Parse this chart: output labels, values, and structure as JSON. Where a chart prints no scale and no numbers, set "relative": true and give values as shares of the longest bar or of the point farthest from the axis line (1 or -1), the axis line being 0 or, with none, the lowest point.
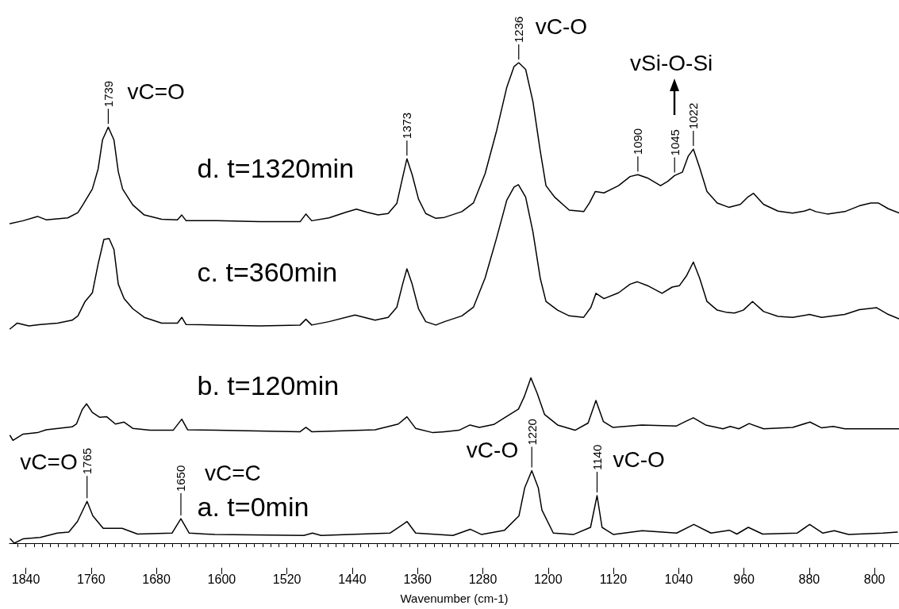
{
  "chart_data": {
    "type": "line",
    "relative": true,
    "xlabel": "Wavenumber (cm-1)",
    "xlim": [
      1860,
      770
    ],
    "xticks": [
      {
        "value": 1850,
        "label": null
      },
      1840,
      {
        "value": 1830,
        "label": null
      },
      {
        "value": 1820,
        "label": null
      },
      {
        "value": 1810,
        "label": null
      },
      {
        "value": 1800,
        "label": null
      },
      {
        "value": 1790,
        "label": null
      },
      {
        "value": 1780,
        "label": null
      },
      {
        "value": 1770,
        "label": null
      },
      1760,
      {
        "value": 1750,
        "label": null
      },
      {
        "value": 1740,
        "label": null
      },
      {
        "value": 1730,
        "label": null
      },
      {
        "value": 1720,
        "label": null
      },
      {
        "value": 1710,
        "label": null
      },
      {
        "value": 1700,
        "label": null
      },
      {
        "value": 1690,
        "label": null
      },
      1680,
      {
        "value": 1670,
        "label": null
      },
      {
        "value": 1660,
        "label": null
      },
      {
        "value": 1650,
        "label": null
      },
      {
        "value": 1640,
        "label": null
      },
      {
        "value": 1630,
        "label": null
      },
      {
        "value": 1620,
        "label": null
      },
      {
        "value": 1610,
        "label": null
      },
      1600,
      {
        "value": 1590,
        "label": null
      },
      {
        "value": 1580,
        "label": null
      },
      {
        "value": 1570,
        "label": null
      },
      {
        "value": 1560,
        "label": null
      },
      {
        "value": 1550,
        "label": null
      },
      {
        "value": 1540,
        "label": null
      },
      {
        "value": 1530,
        "label": null
      },
      1520,
      {
        "value": 1510,
        "label": null
      },
      {
        "value": 1500,
        "label": null
      },
      {
        "value": 1490,
        "label": null
      },
      {
        "value": 1480,
        "label": null
      },
      {
        "value": 1470,
        "label": null
      },
      {
        "value": 1460,
        "label": null
      },
      {
        "value": 1450,
        "label": null
      },
      1440,
      {
        "value": 1430,
        "label": null
      },
      {
        "value": 1420,
        "label": null
      },
      {
        "value": 1410,
        "label": null
      },
      {
        "value": 1400,
        "label": null
      },
      {
        "value": 1390,
        "label": null
      },
      {
        "value": 1380,
        "label": null
      },
      {
        "value": 1370,
        "label": null
      },
      1360,
      {
        "value": 1350,
        "label": null
      },
      {
        "value": 1340,
        "label": null
      },
      {
        "value": 1330,
        "label": null
      },
      {
        "value": 1320,
        "label": null
      },
      {
        "value": 1310,
        "label": null
      },
      {
        "value": 1300,
        "label": null
      },
      {
        "value": 1290,
        "label": null
      },
      1280,
      {
        "value": 1270,
        "label": null
      },
      {
        "value": 1260,
        "label": null
      },
      {
        "value": 1250,
        "label": null
      },
      {
        "value": 1240,
        "label": null
      },
      {
        "value": 1230,
        "label": null
      },
      {
        "value": 1220,
        "label": null
      },
      {
        "value": 1210,
        "label": null
      },
      1200,
      {
        "value": 1190,
        "label": null
      },
      {
        "value": 1180,
        "label": null
      },
      {
        "value": 1170,
        "label": null
      },
      {
        "value": 1160,
        "label": null
      },
      {
        "value": 1150,
        "label": null
      },
      {
        "value": 1140,
        "label": null
      },
      {
        "value": 1130,
        "label": null
      },
      1120,
      {
        "value": 1110,
        "label": null
      },
      {
        "value": 1100,
        "label": null
      },
      {
        "value": 1090,
        "label": null
      },
      {
        "value": 1080,
        "label": null
      },
      {
        "value": 1070,
        "label": null
      },
      {
        "value": 1060,
        "label": null
      },
      {
        "value": 1050,
        "label": null
      },
      1040,
      {
        "value": 1030,
        "label": null
      },
      {
        "value": 1020,
        "label": null
      },
      {
        "value": 1010,
        "label": null
      },
      {
        "value": 1000,
        "label": null
      },
      {
        "value": 990,
        "label": null
      },
      {
        "value": 980,
        "label": null
      },
      {
        "value": 970,
        "label": null
      },
      960,
      {
        "value": 950,
        "label": null
      },
      {
        "value": 940,
        "label": null
      },
      {
        "value": 930,
        "label": null
      },
      {
        "value": 920,
        "label": null
      },
      {
        "value": 910,
        "label": null
      },
      {
        "value": 900,
        "label": null
      },
      {
        "value": 890,
        "label": null
      },
      880,
      {
        "value": 870,
        "label": null
      },
      {
        "value": 860,
        "label": null
      },
      {
        "value": 850,
        "label": null
      },
      {
        "value": 840,
        "label": null
      },
      {
        "value": 830,
        "label": null
      },
      {
        "value": 820,
        "label": null
      },
      {
        "value": 810,
        "label": null
      },
      800,
      {
        "value": 790,
        "label": null
      },
      {
        "value": 780,
        "label": null
      }
    ],
    "grid": false,
    "marker": "none",
    "line_style": "solid",
    "series": [
      {
        "name": "a. t=0min",
        "color": "#000000",
        "x": [
          1859.1,
          1854.1,
          1843.6,
          1822.5,
          1801.4,
          1787.4,
          1776.8,
          1765,
          1757.9,
          1745.2,
          1722.0,
          1703.1,
          1660.9,
          1650,
          1639.8,
          1608.2,
          1499.3,
          1488.7,
          1478.2,
          1393.9,
          1372.8,
          1362.3,
          1316.6,
          1295.5,
          1281.5,
          1253.4,
          1235.7,
          1228.7,
          1220,
          1212,
          1207.6,
          1193.6,
          1169.0,
          1148.0,
          1140,
          1133.9,
          1119.8,
          1084.7,
          1042.5,
          1021.4,
          1000.4,
          977.9,
          968.7,
          954.7,
          937.1,
          894.9,
          879.5,
          863.3,
          849.3,
          831.7,
          789.6,
          772.0
        ],
        "values": [
          0.009,
          0.0,
          0.009,
          0.012,
          0.021,
          0.023,
          0.045,
          0.087,
          0.057,
          0.031,
          0.031,
          0.019,
          0.021,
          0.051,
          0.021,
          0.018,
          0.016,
          0.021,
          0.016,
          0.021,
          0.045,
          0.021,
          0.016,
          0.029,
          0.018,
          0.027,
          0.057,
          0.115,
          0.151,
          0.115,
          0.069,
          0.021,
          0.018,
          0.033,
          0.099,
          0.033,
          0.018,
          0.026,
          0.021,
          0.039,
          0.021,
          0.027,
          0.019,
          0.033,
          0.019,
          0.021,
          0.039,
          0.021,
          0.026,
          0.018,
          0.021,
          0.023
        ]
      },
      {
        "name": "b. t=120min",
        "color": "#000000",
        "x": [
          1859.3,
          1855.8,
          1843.4,
          1825.7,
          1815.1,
          1783.3,
          1778.0,
          1770.9,
          1765.6,
          1758.5,
          1749.7,
          1740.8,
          1730.2,
          1719.6,
          1709.0,
          1687.8,
          1659.5,
          1648.9,
          1641.8,
          1606.4,
          1503.9,
          1496.8,
          1489.7,
          1412.0,
          1383.6,
          1373.0,
          1362.4,
          1341.2,
          1327.0,
          1309.2,
          1295.7,
          1284.3,
          1266.6,
          1252.3,
          1236.3,
          1229.2,
          1221.1,
          1213.2,
          1204.4,
          1188.4,
          1167.0,
          1151.0,
          1141.4,
          1132.2,
          1120.8,
          1085.3,
          1042.6,
          1031.9,
          1022.0,
          1007.0,
          985.7,
          976.8,
          966.2,
          953.7,
          935.9,
          900.4,
          879.1,
          864.8,
          850.6,
          836.4,
          770
        ],
        "values": [
          0.224,
          0.214,
          0.227,
          0.23,
          0.236,
          0.242,
          0.248,
          0.278,
          0.29,
          0.272,
          0.262,
          0.263,
          0.248,
          0.252,
          0.239,
          0.235,
          0.235,
          0.258,
          0.236,
          0.235,
          0.232,
          0.241,
          0.232,
          0.236,
          0.248,
          0.263,
          0.239,
          0.23,
          0.232,
          0.235,
          0.246,
          0.241,
          0.247,
          0.262,
          0.279,
          0.305,
          0.344,
          0.311,
          0.268,
          0.246,
          0.235,
          0.25,
          0.297,
          0.253,
          0.241,
          0.246,
          0.244,
          0.253,
          0.261,
          0.246,
          0.238,
          0.243,
          0.238,
          0.249,
          0.238,
          0.241,
          0.252,
          0.24,
          0.243,
          0.238,
          0.238
        ]
      },
      {
        "name": "c. t=360min",
        "color": "#000000",
        "x": [
          1859.3,
          1850.5,
          1836.3,
          1822.2,
          1801.0,
          1783.3,
          1776.2,
          1767.4,
          1758.5,
          1751.4,
          1744.4,
          1738.0,
          1732.0,
          1726.7,
          1719.6,
          1709.0,
          1694.9,
          1673.6,
          1654.2,
          1648.9,
          1643.6,
          1606.4,
          1553.4,
          1503.9,
          1496.8,
          1489.7,
          1468.5,
          1436.6,
          1412.0,
          1396.0,
          1385.4,
          1378.3,
          1373.0,
          1366.6,
          1358.8,
          1350.0,
          1337.6,
          1327.0,
          1305.7,
          1291.5,
          1277.2,
          1263.0,
          1250.6,
          1241.7,
          1236.4,
          1227.5,
          1218.6,
          1209.7,
          1202.6,
          1188.4,
          1174.1,
          1156.4,
          1147.5,
          1141.4,
          1131.5,
          1113.7,
          1099.5,
          1090.6,
          1078.2,
          1060.4,
          1047.9,
          1039.0,
          1030.2,
          1022.0,
          1014.2,
          1005.3,
          992.8,
          980.4,
          971.5,
          960.8,
          949.5,
          935.9,
          918.2,
          900.4,
          879.8,
          864.8,
          836.4,
          818.6,
          797.3,
          783.1,
          770
        ],
        "values": [
          0.446,
          0.458,
          0.452,
          0.455,
          0.458,
          0.464,
          0.473,
          0.503,
          0.521,
          0.581,
          0.632,
          0.634,
          0.611,
          0.539,
          0.509,
          0.488,
          0.47,
          0.458,
          0.458,
          0.47,
          0.455,
          0.454,
          0.452,
          0.454,
          0.466,
          0.454,
          0.461,
          0.475,
          0.464,
          0.47,
          0.491,
          0.539,
          0.571,
          0.539,
          0.488,
          0.461,
          0.454,
          0.461,
          0.473,
          0.491,
          0.552,
          0.636,
          0.714,
          0.741,
          0.746,
          0.72,
          0.648,
          0.552,
          0.503,
          0.485,
          0.473,
          0.47,
          0.491,
          0.52,
          0.509,
          0.521,
          0.539,
          0.544,
          0.536,
          0.52,
          0.533,
          0.536,
          0.557,
          0.585,
          0.551,
          0.503,
          0.485,
          0.48,
          0.479,
          0.485,
          0.503,
          0.482,
          0.472,
          0.47,
          0.476,
          0.47,
          0.476,
          0.486,
          0.49,
          0.476,
          0.467
        ]
      },
      {
        "name": "d. t=1320min",
        "color": "#000000",
        "x": [
          1859.3,
          1843.4,
          1825.7,
          1815.1,
          1788.6,
          1776.2,
          1769.1,
          1758.5,
          1751.4,
          1746.1,
          1739,
          1732.0,
          1726.7,
          1721.4,
          1709.0,
          1694.9,
          1673.6,
          1654.2,
          1648.9,
          1643.6,
          1606.4,
          1553.4,
          1503.9,
          1496.8,
          1489.7,
          1468.5,
          1447.3,
          1434.9,
          1422.5,
          1408.4,
          1396.0,
          1385.4,
          1378.3,
          1373,
          1366.6,
          1358.8,
          1350.0,
          1337.6,
          1327.0,
          1305.7,
          1291.5,
          1277.2,
          1263.0,
          1250.6,
          1241.7,
          1236,
          1227.5,
          1218.6,
          1209.7,
          1202.6,
          1191.9,
          1174.1,
          1156.4,
          1149.3,
          1142.1,
          1131.5,
          1113.7,
          1099.5,
          1090,
          1078.2,
          1062.2,
          1053.3,
          1045,
          1035.5,
          1028.4,
          1022,
          1014.2,
          1005.3,
          992.8,
          978.6,
          964.4,
          955.5,
          948.4,
          935.9,
          918.2,
          900.4,
          886.2,
          879.1,
          872.0,
          857.8,
          836.4,
          818.6,
          804.4,
          795.5,
          783.1,
          770
        ],
        "values": [
          0.665,
          0.671,
          0.68,
          0.673,
          0.677,
          0.688,
          0.707,
          0.737,
          0.779,
          0.839,
          0.866,
          0.839,
          0.773,
          0.737,
          0.704,
          0.683,
          0.674,
          0.673,
          0.683,
          0.671,
          0.671,
          0.669,
          0.669,
          0.685,
          0.671,
          0.677,
          0.689,
          0.695,
          0.689,
          0.683,
          0.686,
          0.707,
          0.761,
          0.8,
          0.767,
          0.716,
          0.686,
          0.676,
          0.678,
          0.69,
          0.708,
          0.769,
          0.859,
          0.949,
          0.992,
          1,
          0.986,
          0.919,
          0.817,
          0.744,
          0.72,
          0.693,
          0.69,
          0.708,
          0.732,
          0.729,
          0.744,
          0.763,
          0.767,
          0.76,
          0.744,
          0.753,
          0.765,
          0.772,
          0.805,
          0.82,
          0.781,
          0.732,
          0.708,
          0.699,
          0.705,
          0.72,
          0.728,
          0.705,
          0.691,
          0.687,
          0.691,
          0.695,
          0.69,
          0.685,
          0.69,
          0.702,
          0.708,
          0.708,
          0.696,
          0.687
        ]
      }
    ],
    "annotations": [
      {
        "text": "1739",
        "x": 1739,
        "y": 0.866
      },
      "vC=O",
      {
        "text": "1373",
        "x": 1373,
        "y": 0.8
      },
      {
        "text": "1236",
        "x": 1236,
        "y": 1
      },
      "vC-O",
      {
        "text": "1090",
        "x": 1090,
        "y": 0.767
      },
      {
        "text": "1045",
        "x": 1045,
        "y": 0.765
      },
      {
        "text": "1022",
        "x": 1022,
        "y": 0.82
      },
      "vSi-O-Si",
      {
        "text": "1765",
        "x": 1765,
        "y": 0.087
      },
      "vC=O",
      {
        "text": "1650",
        "x": 1650,
        "y": 0.051
      },
      "vC=C",
      {
        "text": "1220",
        "x": 1220,
        "y": 0.151
      },
      "vC-O",
      {
        "text": "1140",
        "x": 1140,
        "y": 0.099
      },
      "vC-O"
    ]
  }
}
